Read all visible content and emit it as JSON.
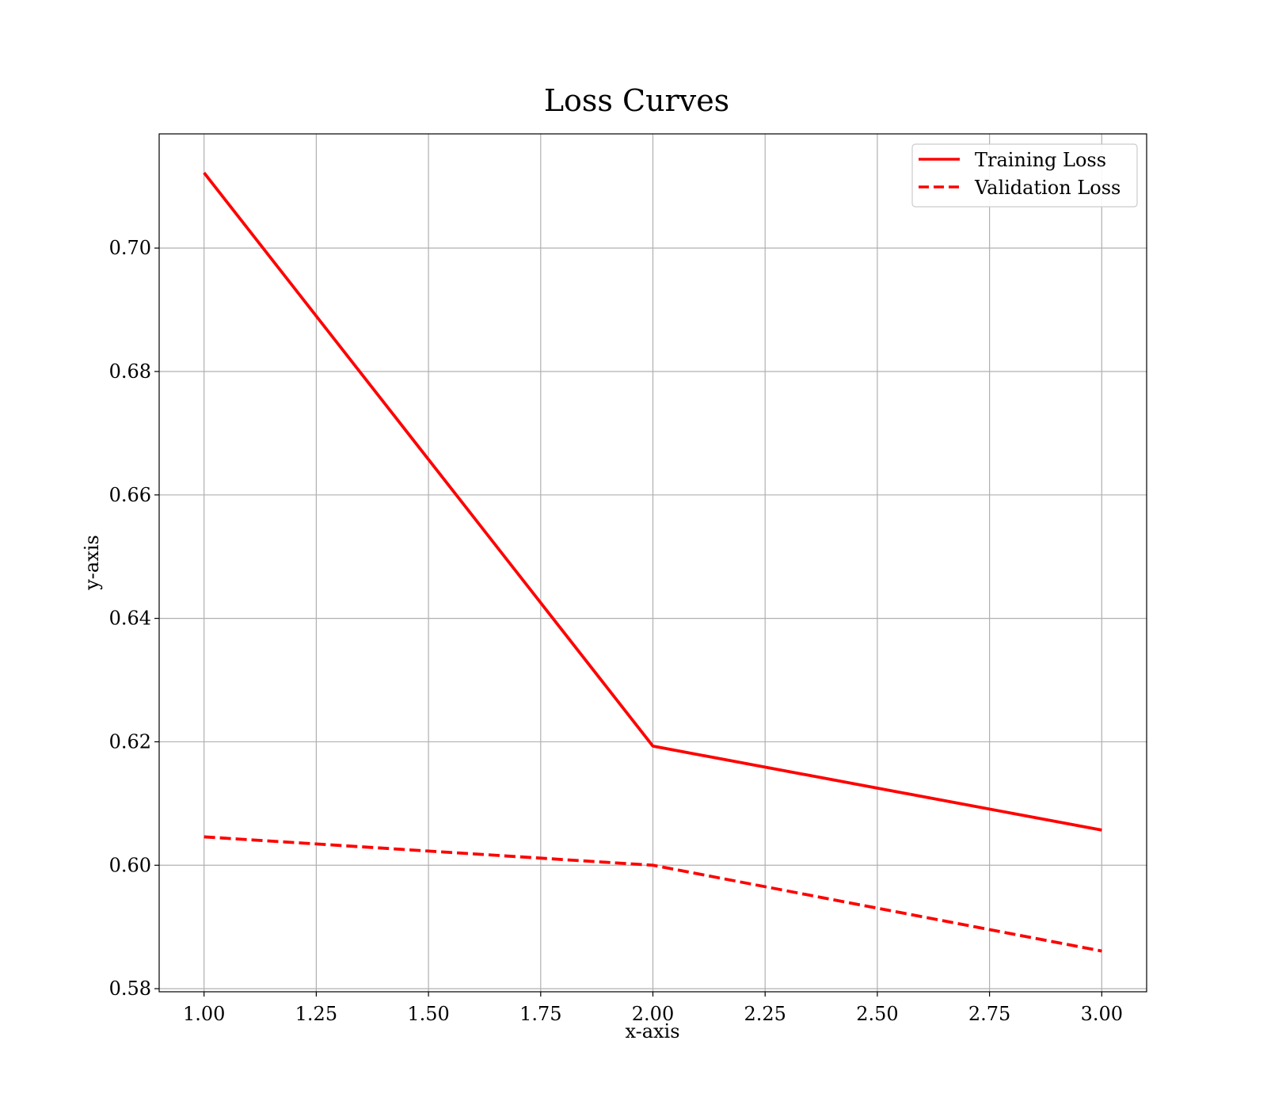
{
  "chart_data": {
    "type": "line",
    "title": "Loss Curves",
    "xlabel": "x-axis",
    "ylabel": "y-axis",
    "x": [
      1.0,
      2.0,
      3.0
    ],
    "xlim": [
      0.9,
      3.1
    ],
    "ylim": [
      0.5795,
      0.7185
    ],
    "xticks": [
      "1.00",
      "1.25",
      "1.50",
      "1.75",
      "2.00",
      "2.25",
      "2.50",
      "2.75",
      "3.00"
    ],
    "yticks": [
      "0.58",
      "0.60",
      "0.62",
      "0.64",
      "0.66",
      "0.68",
      "0.70"
    ],
    "grid": true,
    "legend_position": "top-right",
    "series": [
      {
        "name": "Training Loss",
        "values": [
          0.7122,
          0.6193,
          0.6057
        ],
        "color": "#ff0000",
        "style": "solid"
      },
      {
        "name": "Validation Loss",
        "values": [
          0.6046,
          0.6,
          0.5861
        ],
        "color": "#ff0000",
        "style": "dashed"
      }
    ]
  }
}
